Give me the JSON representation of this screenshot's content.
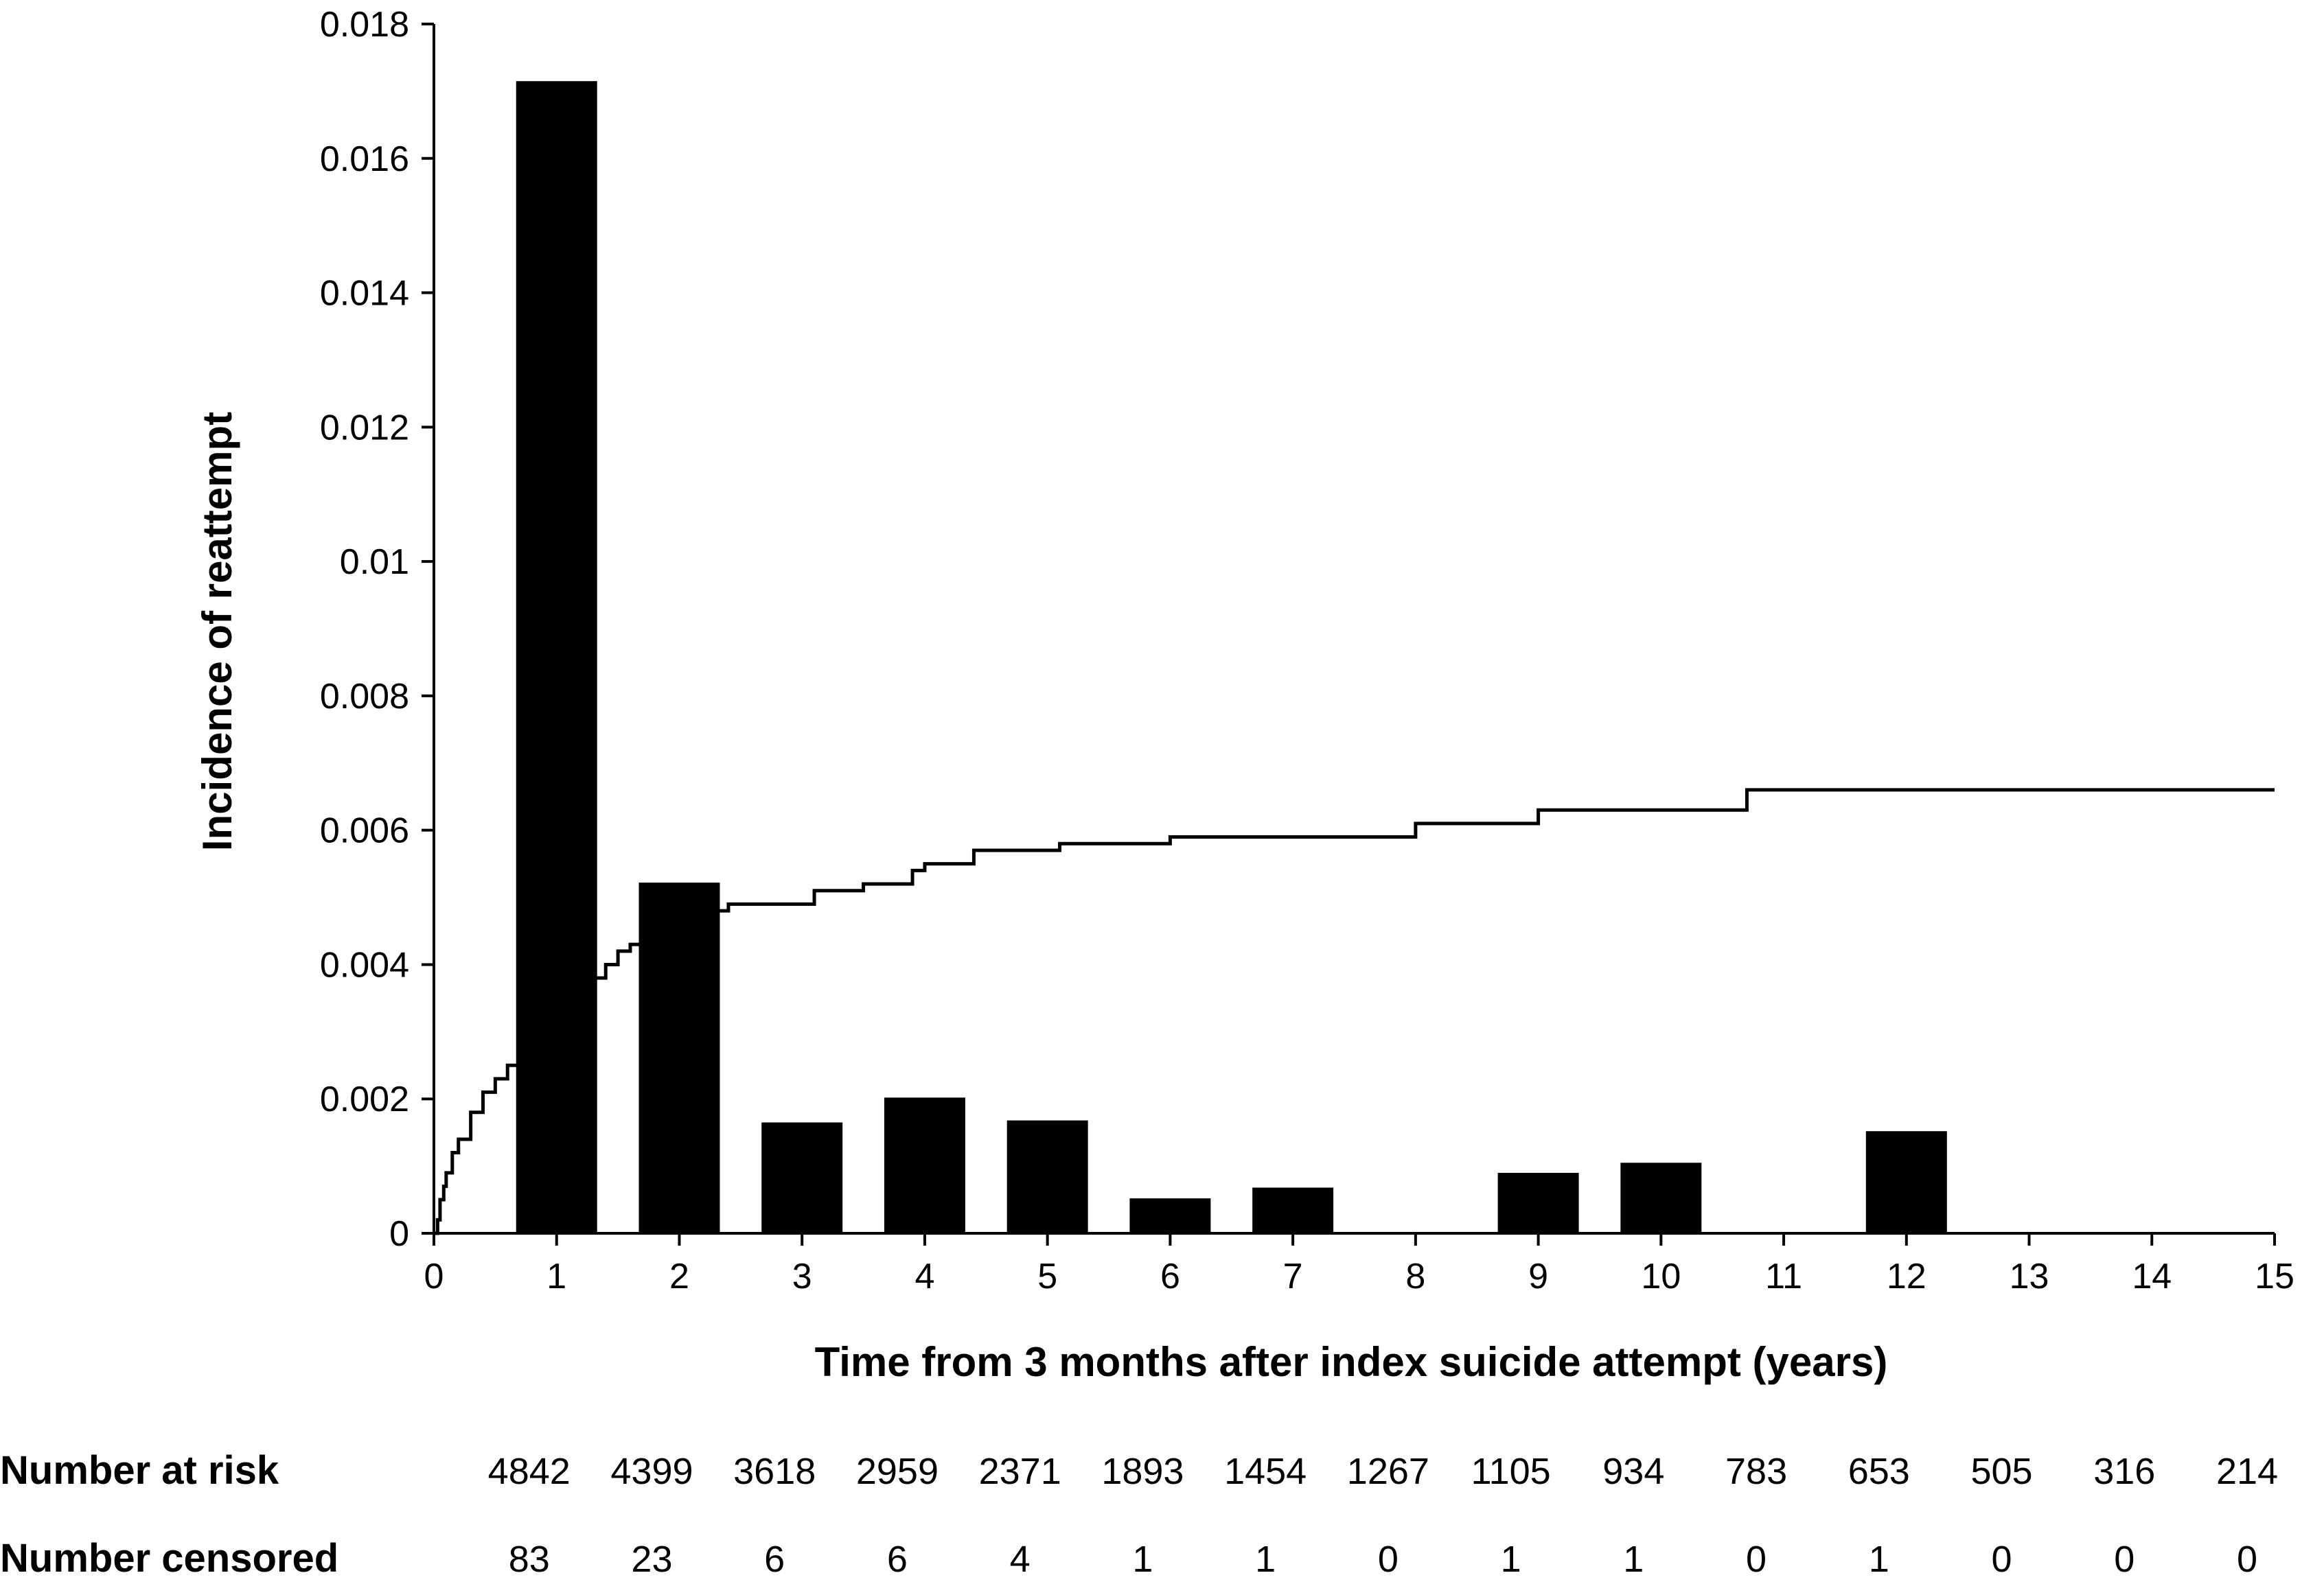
{
  "chart_data": {
    "type": "bar",
    "title": "",
    "xlabel": "Time from 3 months after index suicide attempt (years)",
    "ylabel": "Incidence of reattempt",
    "xlim": [
      0,
      15
    ],
    "ylim": [
      0,
      0.018
    ],
    "x_ticks": [
      "0",
      "1",
      "2",
      "3",
      "4",
      "5",
      "6",
      "7",
      "8",
      "9",
      "10",
      "11",
      "12",
      "13",
      "14",
      "15"
    ],
    "y_ticks": [
      "0",
      "0.002",
      "0.004",
      "0.006",
      "0.008",
      "0.01",
      "0.012",
      "0.014",
      "0.016",
      "0.018"
    ],
    "grid": false,
    "legend": "none",
    "bars": {
      "x": [
        1,
        2,
        3,
        4,
        5,
        6,
        7,
        9,
        10,
        12
      ],
      "values": [
        0.01715,
        0.00522,
        0.00165,
        0.00202,
        0.00168,
        0.00052,
        0.00068,
        0.0009,
        0.00105,
        0.00152
      ]
    },
    "line": {
      "x": [
        0,
        0.03,
        0.05,
        0.08,
        0.1,
        0.15,
        0.2,
        0.3,
        0.4,
        0.5,
        0.6,
        0.7,
        0.8,
        1.0,
        1.2,
        1.4,
        1.5,
        1.6,
        1.8,
        2.0,
        2.1,
        2.2,
        2.4,
        2.5,
        3.0,
        3.1,
        3.5,
        3.9,
        4.0,
        4.3,
        4.4,
        5.0,
        5.1,
        6.0,
        6.5,
        7.0,
        8.0,
        8.5,
        9.0,
        10.0,
        10.6,
        10.7,
        11.0,
        15.0
      ],
      "values": [
        0,
        0.0002,
        0.0005,
        0.0007,
        0.0009,
        0.0012,
        0.0014,
        0.0018,
        0.0021,
        0.0023,
        0.0025,
        0.0028,
        0.003,
        0.0035,
        0.0038,
        0.004,
        0.0042,
        0.0043,
        0.0045,
        0.0047,
        0.0048,
        0.0048,
        0.0049,
        0.0049,
        0.0049,
        0.0051,
        0.0052,
        0.0054,
        0.0055,
        0.0055,
        0.0057,
        0.0057,
        0.0058,
        0.0059,
        0.0059,
        0.0059,
        0.0061,
        0.0061,
        0.0063,
        0.0063,
        0.0063,
        0.0066,
        0.0066,
        0.0066
      ]
    }
  },
  "risk_table": {
    "at_risk_label": "Number at risk",
    "censored_label": "Number censored",
    "at_risk": [
      "4842",
      "4399",
      "3618",
      "2959",
      "2371",
      "1893",
      "1454",
      "1267",
      "1105",
      "934",
      "783",
      "653",
      "505",
      "316",
      "214"
    ],
    "censored": [
      "83",
      "23",
      "6",
      "6",
      "4",
      "1",
      "1",
      "0",
      "1",
      "1",
      "0",
      "1",
      "0",
      "0",
      "0"
    ]
  }
}
